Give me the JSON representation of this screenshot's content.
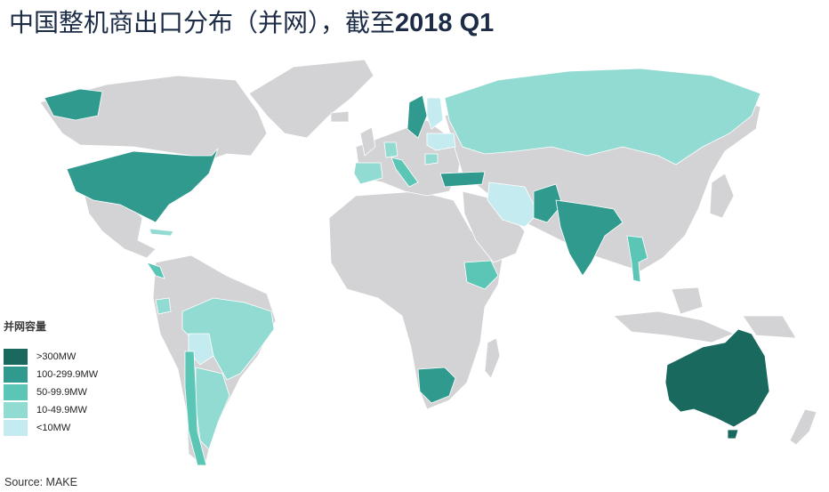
{
  "title": {
    "text": "中国整机商出口分布（并网），截至",
    "bold": "2018 Q1"
  },
  "legend": {
    "title": "并网容量",
    "items": [
      {
        "label": ">300MW",
        "color": "#19695e"
      },
      {
        "label": "100-299.9MW",
        "color": "#2f9a8d"
      },
      {
        "label": "50-99.9MW",
        "color": "#5bc6b6"
      },
      {
        "label": "10-49.9MW",
        "color": "#92dbd2"
      },
      {
        "label": "<10MW",
        "color": "#c4ebef"
      }
    ]
  },
  "colors": {
    "land": "#d3d3d6",
    "water": "#ffffff",
    "border": "#ffffff"
  },
  "countries": [
    {
      "name": "australia",
      "tier": ">300MW"
    },
    {
      "name": "usa",
      "tier": "100-299.9MW"
    },
    {
      "name": "india",
      "tier": "100-299.9MW"
    },
    {
      "name": "pakistan",
      "tier": "100-299.9MW"
    },
    {
      "name": "south-africa",
      "tier": "100-299.9MW"
    },
    {
      "name": "sweden",
      "tier": "100-299.9MW"
    },
    {
      "name": "turkey",
      "tier": "100-299.9MW"
    },
    {
      "name": "ethiopia",
      "tier": "50-99.9MW"
    },
    {
      "name": "italy",
      "tier": "50-99.9MW"
    },
    {
      "name": "thailand",
      "tier": "50-99.9MW"
    },
    {
      "name": "chile",
      "tier": "50-99.9MW"
    },
    {
      "name": "central-america",
      "tier": "50-99.9MW"
    },
    {
      "name": "russia",
      "tier": "10-49.9MW"
    },
    {
      "name": "brazil",
      "tier": "10-49.9MW"
    },
    {
      "name": "argentina",
      "tier": "10-49.9MW"
    },
    {
      "name": "spain",
      "tier": "10-49.9MW"
    },
    {
      "name": "germany",
      "tier": "10-49.9MW"
    },
    {
      "name": "romania",
      "tier": "10-49.9MW"
    },
    {
      "name": "ecuador",
      "tier": "10-49.9MW"
    },
    {
      "name": "cuba",
      "tier": "10-49.9MW"
    },
    {
      "name": "iran",
      "tier": "<10MW"
    },
    {
      "name": "bolivia",
      "tier": "<10MW"
    },
    {
      "name": "finland",
      "tier": "<10MW"
    },
    {
      "name": "ukraine",
      "tier": "<10MW"
    }
  ],
  "source": "Source: MAKE"
}
